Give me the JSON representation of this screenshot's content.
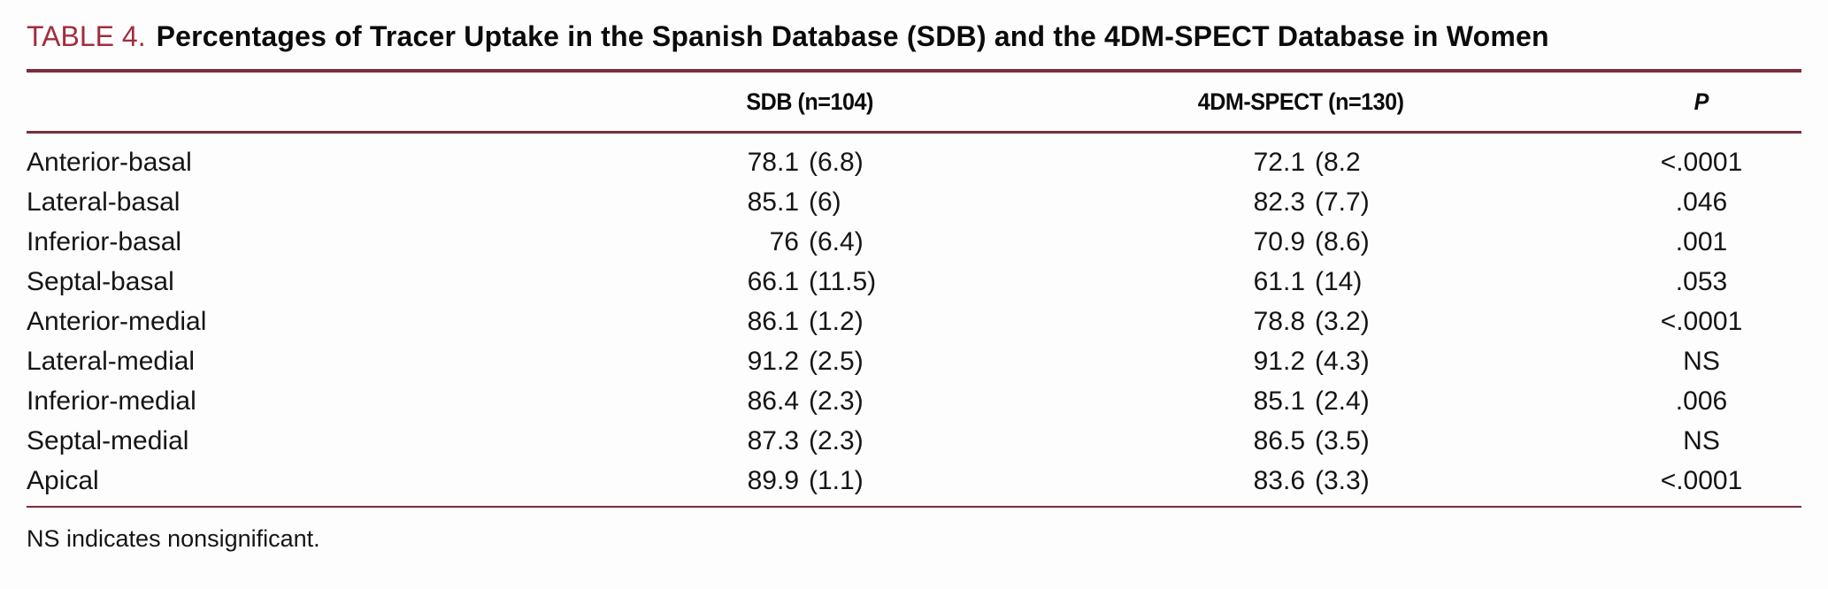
{
  "page": {
    "background": "#fdfdfd",
    "accent_color": "#a22c3e",
    "rule_color": "#7a2e3e"
  },
  "title": {
    "label": "TABLE 4.",
    "text": "Percentages of Tracer Uptake in the Spanish Database (SDB) and the 4DM-SPECT Database in Women"
  },
  "table": {
    "columns": {
      "region": "",
      "sdb": "SDB (n=104)",
      "spect": "4DM-SPECT (n=130)",
      "p": "P"
    },
    "rows": [
      {
        "label": "Anterior-basal",
        "sdb_mean": "78.1",
        "sdb_sd": "(6.8)",
        "spect_mean": "72.1",
        "spect_sd": "(8.2",
        "p": "<.0001"
      },
      {
        "label": "Lateral-basal",
        "sdb_mean": "85.1",
        "sdb_sd": "(6)",
        "spect_mean": "82.3",
        "spect_sd": "(7.7)",
        "p": ".046"
      },
      {
        "label": "Inferior-basal",
        "sdb_mean": "76",
        "sdb_sd": "(6.4)",
        "spect_mean": "70.9",
        "spect_sd": "(8.6)",
        "p": ".001"
      },
      {
        "label": "Septal-basal",
        "sdb_mean": "66.1",
        "sdb_sd": "(11.5)",
        "spect_mean": "61.1",
        "spect_sd": "(14)",
        "p": ".053"
      },
      {
        "label": "Anterior-medial",
        "sdb_mean": "86.1",
        "sdb_sd": "(1.2)",
        "spect_mean": "78.8",
        "spect_sd": "(3.2)",
        "p": "<.0001"
      },
      {
        "label": "Lateral-medial",
        "sdb_mean": "91.2",
        "sdb_sd": "(2.5)",
        "spect_mean": "91.2",
        "spect_sd": "(4.3)",
        "p": "NS"
      },
      {
        "label": "Inferior-medial",
        "sdb_mean": "86.4",
        "sdb_sd": "(2.3)",
        "spect_mean": "85.1",
        "spect_sd": "(2.4)",
        "p": ".006"
      },
      {
        "label": "Septal-medial",
        "sdb_mean": "87.3",
        "sdb_sd": "(2.3)",
        "spect_mean": "86.5",
        "spect_sd": "(3.5)",
        "p": "NS"
      },
      {
        "label": "Apical",
        "sdb_mean": "89.9",
        "sdb_sd": "(1.1)",
        "spect_mean": "83.6",
        "spect_sd": "(3.3)",
        "p": "<.0001"
      }
    ]
  },
  "footnote": "NS indicates nonsignificant."
}
